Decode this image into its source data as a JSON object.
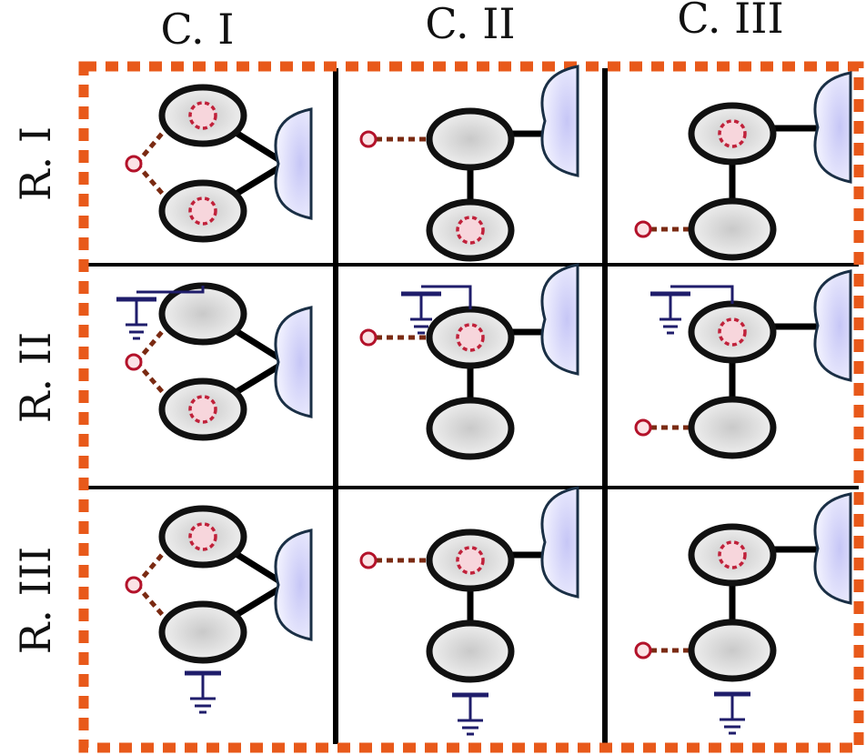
{
  "column_labels": [
    "C. I",
    "C. II",
    "C. III"
  ],
  "row_labels": [
    "R. I",
    "R. II",
    "R. III"
  ],
  "colors": {
    "border": "#e8591a",
    "ground": "#1f1d6b",
    "link_line": "#7a2a12",
    "node_outline": "#111111",
    "node_fill": "#d9d9d9",
    "dot_outline": "#c0213a",
    "dot_fill": "#f7d6dc",
    "port_outline": "#b3122a",
    "port_fill": "#fbe3e6",
    "dish_outline": "#1a2f45",
    "dish_fill": "#dcdcf8"
  },
  "cells": [
    {
      "row": 1,
      "col": 1,
      "layout": "stacked-left",
      "dotted": [
        "top",
        "bottom"
      ],
      "ground": "none"
    },
    {
      "row": 1,
      "col": 2,
      "layout": "vertical",
      "dotted": [
        "bottom"
      ],
      "ground": "none"
    },
    {
      "row": 1,
      "col": 3,
      "layout": "vertical-right",
      "dotted": [
        "top"
      ],
      "ground": "none"
    },
    {
      "row": 2,
      "col": 1,
      "layout": "stacked-left",
      "dotted": [
        "bottom"
      ],
      "ground": "top"
    },
    {
      "row": 2,
      "col": 2,
      "layout": "vertical",
      "dotted": [
        "top"
      ],
      "ground": "top"
    },
    {
      "row": 2,
      "col": 3,
      "layout": "vertical-right",
      "dotted": [
        "top"
      ],
      "ground": "top"
    },
    {
      "row": 3,
      "col": 1,
      "layout": "stacked-left",
      "dotted": [
        "top"
      ],
      "ground": "bottom"
    },
    {
      "row": 3,
      "col": 2,
      "layout": "vertical",
      "dotted": [
        "top"
      ],
      "ground": "bottom"
    },
    {
      "row": 3,
      "col": 3,
      "layout": "vertical-right",
      "dotted": [
        "top"
      ],
      "ground": "bottom"
    }
  ]
}
